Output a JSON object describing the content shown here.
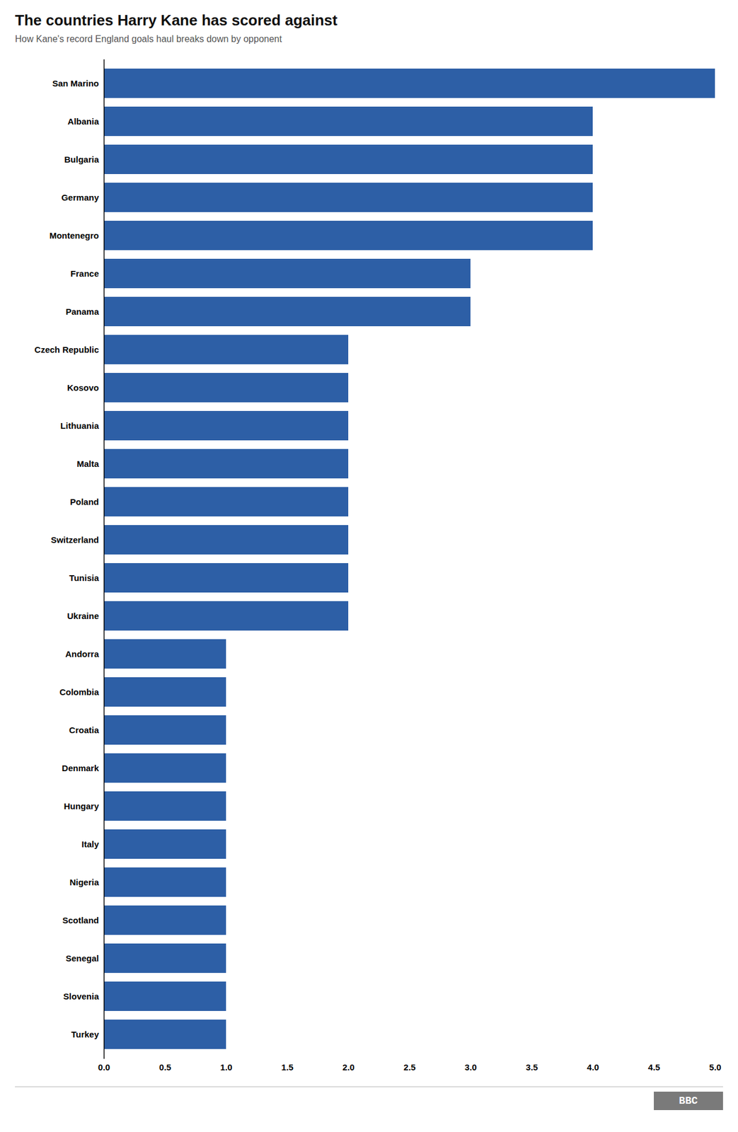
{
  "chart_data": {
    "type": "bar",
    "orientation": "horizontal",
    "title": "The countries Harry Kane has scored against",
    "subtitle": "How Kane's record England goals haul breaks down by opponent",
    "categories": [
      "San Marino",
      "Albania",
      "Bulgaria",
      "Germany",
      "Montenegro",
      "France",
      "Panama",
      "Czech Republic",
      "Kosovo",
      "Lithuania",
      "Malta",
      "Poland",
      "Switzerland",
      "Tunisia",
      "Ukraine",
      "Andorra",
      "Colombia",
      "Croatia",
      "Denmark",
      "Hungary",
      "Italy",
      "Nigeria",
      "Scotland",
      "Senegal",
      "Slovenia",
      "Turkey"
    ],
    "values": [
      5,
      4,
      4,
      4,
      4,
      3,
      3,
      2,
      2,
      2,
      2,
      2,
      2,
      2,
      2,
      1,
      1,
      1,
      1,
      1,
      1,
      1,
      1,
      1,
      1,
      1
    ],
    "color": "#2d5fa6",
    "xlim": [
      0,
      5.0
    ],
    "xticks": [
      {
        "value": 0,
        "label": "0.0"
      },
      0.5,
      {
        "value": 1,
        "label": "1.0"
      },
      1.5,
      {
        "value": 2,
        "label": "2.0"
      },
      2.5,
      {
        "value": 3,
        "label": "3.0"
      },
      3.5,
      {
        "value": 4,
        "label": "4.0"
      },
      4.5,
      {
        "value": 5,
        "label": "5.0"
      }
    ],
    "grid": false,
    "annotations": [
      {
        "text": "BBC",
        "color": "#7a7a7a"
      }
    ]
  }
}
